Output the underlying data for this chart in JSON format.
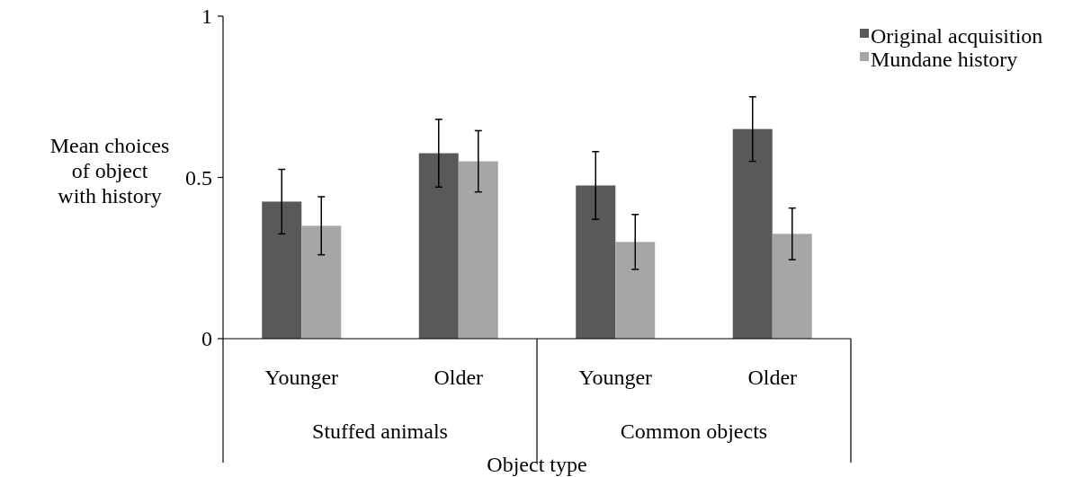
{
  "chart_data": {
    "type": "bar",
    "xlabel": "Object type",
    "ylabel": "Mean choices of object with history",
    "categories": [
      "Younger",
      "Older",
      "Younger",
      "Older"
    ],
    "annotations": [
      "Stuffed animals",
      "Common objects"
    ],
    "series": [
      {
        "name": "Original acquisition",
        "color": "#595959",
        "values": [
          0.425,
          0.575,
          0.475,
          0.65
        ],
        "errors": [
          0.1,
          0.105,
          0.105,
          0.1
        ]
      },
      {
        "name": "Mundane history",
        "color": "#a6a6a6",
        "values": [
          0.35,
          0.55,
          0.3,
          0.325
        ],
        "errors": [
          0.09,
          0.095,
          0.085,
          0.08
        ]
      }
    ],
    "ylim": [
      0,
      1
    ],
    "yticks": [
      0,
      0.5,
      1
    ],
    "legend": "top right",
    "grid": false
  }
}
